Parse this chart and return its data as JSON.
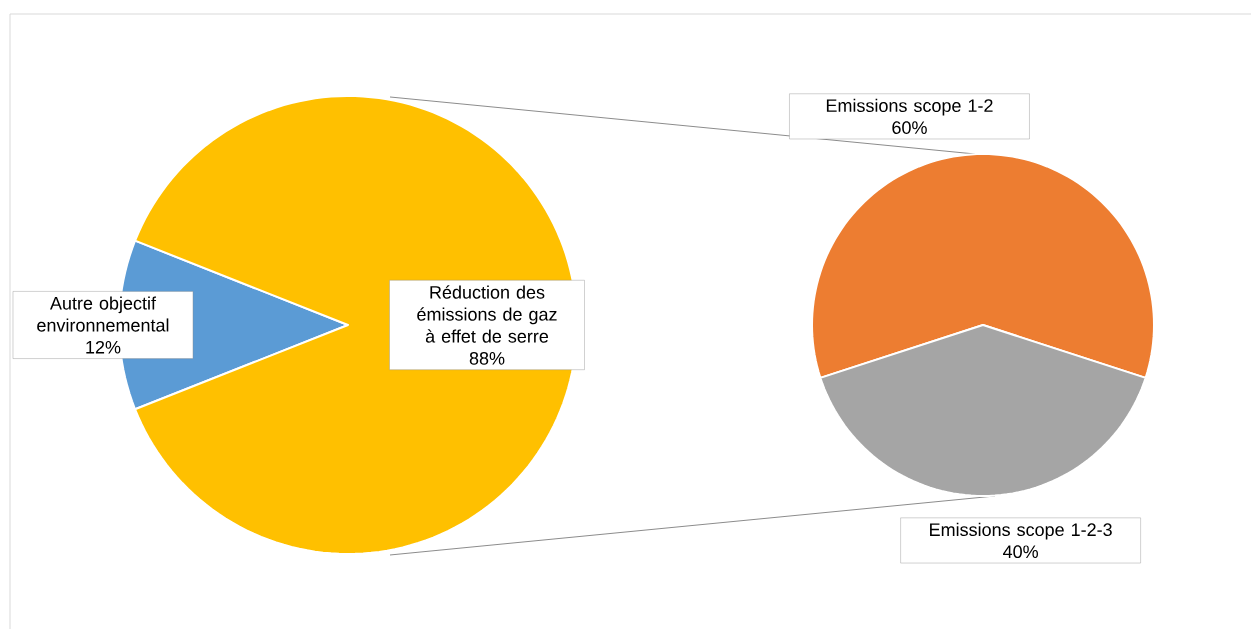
{
  "chart_data": [
    {
      "type": "pie",
      "categories": [
        "Autre objectif environnemental",
        "Réduction des émissions de gaz à effet de serre"
      ],
      "values": [
        12,
        88
      ],
      "value_labels": [
        "12%",
        "88%"
      ],
      "colors": [
        "#5b9bd5",
        "#ffc000"
      ]
    },
    {
      "type": "pie",
      "categories": [
        "Emissions scope 1-2",
        "Emissions scope 1-2-3"
      ],
      "values": [
        60,
        40
      ],
      "value_labels": [
        "60%",
        "40%"
      ],
      "colors": [
        "#ed7d31",
        "#a5a5a5"
      ]
    }
  ]
}
